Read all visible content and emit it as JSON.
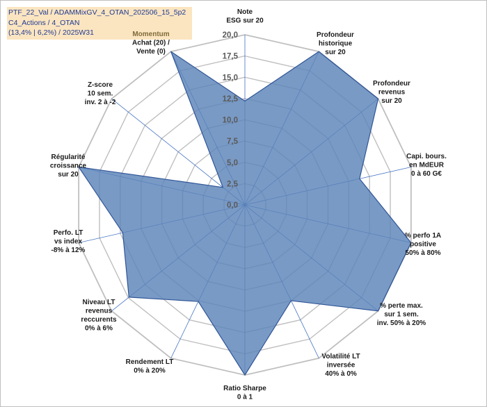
{
  "chart_data": {
    "type": "radar",
    "title_lines": [
      "PTF_22_Val / ADAMMixGV_4_OTAN_202506_15_5p2",
      "C4_Actions / 4_OTAN",
      "(13,4% | 6,2%) / 2025W31"
    ],
    "r_range": [
      0,
      20
    ],
    "ticks": [
      "0,0",
      "2,5",
      "5,0",
      "7,5",
      "10,0",
      "12,5",
      "15,0",
      "17,5",
      "20,0"
    ],
    "grid": true,
    "axes": [
      {
        "label": [
          "Note",
          "ESG sur 20"
        ],
        "value": 12.2
      },
      {
        "label": [
          "Profondeur",
          "historique",
          "sur 20"
        ],
        "value": 20
      },
      {
        "label": [
          "Profondeur",
          "revenus",
          "sur 20"
        ],
        "value": 20
      },
      {
        "label": [
          "Capi. bours.",
          "en MdEUR",
          "0 à 60 G€"
        ],
        "value": 13.8
      },
      {
        "label": [
          "% perfo 1A",
          "positive",
          "50% à 80%"
        ],
        "value": 20
      },
      {
        "label": [
          "% perte max.",
          "sur 1 sem.",
          "inv. 50% à 20%"
        ],
        "value": 20
      },
      {
        "label": [
          "Volatilité LT",
          "inversée",
          "40% à 0%"
        ],
        "value": 12.5
      },
      {
        "label": [
          "Ratio Sharpe",
          "0 à 1"
        ],
        "value": 20
      },
      {
        "label": [
          "Rendement LT",
          "0% à 20%"
        ],
        "value": 12.6
      },
      {
        "label": [
          "Niveau LT",
          "revenus",
          "reccurents",
          "0% à 6%"
        ],
        "value": 17.4
      },
      {
        "label": [
          "Perfo. LT",
          "vs index",
          "-8% à 12%"
        ],
        "value": 14.7
      },
      {
        "label": [
          "Régularité",
          "croissance",
          "sur 20"
        ],
        "value": 20
      },
      {
        "label": [
          "Z-score",
          "10 sem.",
          "inv. 2 à -2"
        ],
        "value": 3.3
      },
      {
        "label": [
          "Momentum",
          "Achat (20) /",
          "Vente (0)"
        ],
        "value": 20
      }
    ],
    "colors": {
      "fill": "#5b84b8",
      "stroke": "#2f5597",
      "grid": "#bfbfbf",
      "spoke": "#4472c4",
      "title_bg": "#fbe5c0",
      "title_text": "#1f3a93"
    }
  }
}
